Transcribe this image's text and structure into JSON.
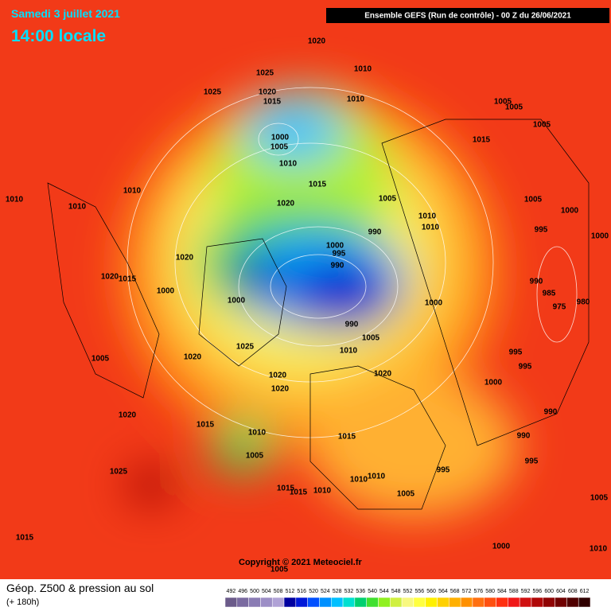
{
  "header": {
    "date": "Samedi 3 juillet 2021",
    "time": "14:00 locale",
    "run": "Ensemble GEFS  (Run de contrôle)  - 00 Z du 26/06/2021"
  },
  "footer": {
    "field": "Géop. Z500 & pression au sol",
    "lead": "(+ 180h)",
    "copyright": "Copyright © 2021 Meteociel.fr"
  },
  "isobar_labels": [
    1020,
    1010,
    1025,
    1025,
    1020,
    1015,
    1010,
    1005,
    1005,
    1000,
    1005,
    1005,
    1015,
    1010,
    1010,
    1015,
    1005,
    1010,
    1010,
    1020,
    1005,
    1000,
    1010,
    1010,
    990,
    995,
    1000,
    1000,
    995,
    1020,
    990,
    1020,
    1015,
    1000,
    990,
    985,
    975,
    980,
    1000,
    1000,
    990,
    1005,
    1025,
    1010,
    995,
    1005,
    1020,
    995,
    1020,
    1020,
    1020,
    1000,
    1020,
    1015,
    1010,
    990,
    1015,
    990,
    1005,
    995,
    1025,
    995,
    1010,
    1010,
    1015,
    1015,
    1010,
    1005,
    1005,
    1015,
    1000,
    1010,
    1005
  ],
  "colorbar": {
    "values": [
      492,
      496,
      500,
      504,
      508,
      512,
      516,
      520,
      524,
      528,
      532,
      536,
      540,
      544,
      548,
      552,
      556,
      560,
      564,
      568,
      572,
      576,
      580,
      584,
      588,
      592,
      596,
      600,
      604,
      608,
      612
    ],
    "colors": [
      "#6b5b8a",
      "#7a6aa0",
      "#8a7cb4",
      "#9c8ec6",
      "#b0a2d6",
      "#0000a0",
      "#0018d8",
      "#0050ff",
      "#0090ff",
      "#00c0ff",
      "#00e0d0",
      "#00d070",
      "#40e030",
      "#90f020",
      "#d0f040",
      "#f8f880",
      "#ffff40",
      "#fff000",
      "#ffd000",
      "#ffb000",
      "#ff9000",
      "#ff7010",
      "#ff5010",
      "#ff3010",
      "#f01818",
      "#d01010",
      "#b00808",
      "#900404",
      "#700000",
      "#500000",
      "#300000"
    ]
  }
}
